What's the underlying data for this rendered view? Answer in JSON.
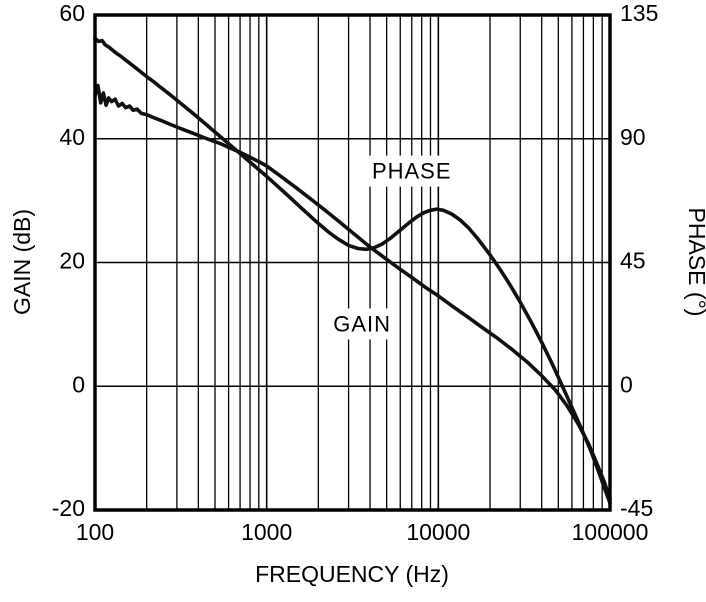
{
  "page": {
    "background": "#ffffff",
    "ink": "#000000"
  },
  "chart_data": {
    "type": "line",
    "x_scale": "log",
    "x_range": [
      100,
      100000
    ],
    "x_ticks": [
      100,
      1000,
      10000,
      100000
    ],
    "x_tick_labels": [
      "100",
      "1000",
      "10000",
      "100000"
    ],
    "xlabel": "FREQUENCY (Hz)",
    "left_axis": {
      "label": "GAIN (dB)",
      "range": [
        -20,
        60
      ],
      "ticks": [
        60,
        40,
        20,
        0,
        -20
      ],
      "tick_labels": [
        "60",
        "40",
        "20",
        "0",
        "-20"
      ]
    },
    "right_axis": {
      "label": "PHASE (°)",
      "range": [
        -45,
        135
      ],
      "ticks": [
        135,
        90,
        45,
        0,
        -45
      ],
      "tick_labels": [
        "135",
        "90",
        "45",
        "0",
        "-45"
      ]
    },
    "grid": {
      "vertical": "log minor + decade lines",
      "horizontal": "major ticks",
      "color": "#000000"
    },
    "line_color": "#111111",
    "line_width": 3.6,
    "series": [
      {
        "name": "GAIN",
        "axis": "left",
        "units": "dB",
        "points": [
          [
            100,
            47.0
          ],
          [
            104,
            48.6
          ],
          [
            108,
            45.8
          ],
          [
            112,
            47.4
          ],
          [
            116,
            45.4
          ],
          [
            120,
            46.6
          ],
          [
            125,
            46.0
          ],
          [
            131,
            46.4
          ],
          [
            137,
            45.3
          ],
          [
            144,
            45.7
          ],
          [
            151,
            45.0
          ],
          [
            159,
            45.3
          ],
          [
            167,
            44.6
          ],
          [
            176,
            44.8
          ],
          [
            186,
            44.1
          ],
          [
            200,
            43.9
          ],
          [
            220,
            43.4
          ],
          [
            240,
            43.0
          ],
          [
            270,
            42.4
          ],
          [
            300,
            41.9
          ],
          [
            340,
            41.3
          ],
          [
            380,
            40.8
          ],
          [
            430,
            40.2
          ],
          [
            480,
            39.7
          ],
          [
            540,
            39.2
          ],
          [
            600,
            38.6
          ],
          [
            700,
            37.8
          ],
          [
            800,
            37.0
          ],
          [
            900,
            36.3
          ],
          [
            1000,
            35.6
          ],
          [
            1200,
            34.0
          ],
          [
            1500,
            32.0
          ],
          [
            1800,
            30.3
          ],
          [
            2200,
            28.4
          ],
          [
            2700,
            26.4
          ],
          [
            3300,
            24.4
          ],
          [
            4000,
            22.5
          ],
          [
            5000,
            20.5
          ],
          [
            6000,
            18.9
          ],
          [
            7000,
            17.6
          ],
          [
            8500,
            15.9
          ],
          [
            10000,
            14.6
          ],
          [
            12000,
            13.0
          ],
          [
            15000,
            11.1
          ],
          [
            18000,
            9.5
          ],
          [
            22000,
            7.8
          ],
          [
            27000,
            5.9
          ],
          [
            33000,
            3.9
          ],
          [
            40000,
            1.7
          ],
          [
            48000,
            -0.6
          ],
          [
            56000,
            -3.1
          ],
          [
            65000,
            -6.0
          ],
          [
            75000,
            -9.3
          ],
          [
            85000,
            -12.9
          ],
          [
            93000,
            -15.6
          ],
          [
            100000,
            -18.2
          ]
        ]
      },
      {
        "name": "PHASE",
        "axis": "right",
        "units": "deg",
        "points": [
          [
            100,
            126.5
          ],
          [
            105,
            125.4
          ],
          [
            110,
            125.7
          ],
          [
            115,
            124.1
          ],
          [
            120,
            123.4
          ],
          [
            126,
            122.3
          ],
          [
            133,
            121.1
          ],
          [
            140,
            120.2
          ],
          [
            148,
            119.0
          ],
          [
            157,
            117.8
          ],
          [
            167,
            116.5
          ],
          [
            178,
            115.1
          ],
          [
            190,
            113.7
          ],
          [
            205,
            112.1
          ],
          [
            220,
            110.7
          ],
          [
            240,
            108.8
          ],
          [
            265,
            106.7
          ],
          [
            290,
            104.8
          ],
          [
            320,
            102.6
          ],
          [
            360,
            100.0
          ],
          [
            400,
            97.6
          ],
          [
            450,
            94.9
          ],
          [
            500,
            92.4
          ],
          [
            560,
            89.8
          ],
          [
            630,
            87.1
          ],
          [
            710,
            84.3
          ],
          [
            800,
            81.5
          ],
          [
            900,
            78.8
          ],
          [
            1000,
            76.3
          ],
          [
            1150,
            72.9
          ],
          [
            1300,
            69.9
          ],
          [
            1500,
            66.3
          ],
          [
            1750,
            62.5
          ],
          [
            2000,
            59.2
          ],
          [
            2300,
            56.0
          ],
          [
            2600,
            53.6
          ],
          [
            3000,
            51.2
          ],
          [
            3400,
            50.1
          ],
          [
            3800,
            49.8
          ],
          [
            4200,
            50.3
          ],
          [
            4700,
            51.7
          ],
          [
            5300,
            54.0
          ],
          [
            6000,
            56.8
          ],
          [
            6700,
            59.3
          ],
          [
            7500,
            61.6
          ],
          [
            8300,
            63.2
          ],
          [
            9000,
            64.0
          ],
          [
            9800,
            64.4
          ],
          [
            10700,
            64.0
          ],
          [
            12000,
            62.6
          ],
          [
            13500,
            60.3
          ],
          [
            15000,
            57.6
          ],
          [
            17000,
            53.6
          ],
          [
            20000,
            47.8
          ],
          [
            23000,
            42.3
          ],
          [
            26000,
            37.1
          ],
          [
            30000,
            30.6
          ],
          [
            35000,
            23.0
          ],
          [
            40000,
            16.0
          ],
          [
            46000,
            8.2
          ],
          [
            52000,
            1.0
          ],
          [
            60000,
            -7.7
          ],
          [
            68000,
            -15.2
          ],
          [
            77000,
            -23.2
          ],
          [
            86000,
            -31.2
          ],
          [
            93000,
            -37.2
          ],
          [
            100000,
            -42.5
          ]
        ]
      }
    ],
    "annotations": [
      {
        "text": "PHASE",
        "x_hz": 7000,
        "y_db": 34.5
      },
      {
        "text": "GAIN",
        "x_hz": 3600,
        "y_db": 9.8
      }
    ]
  }
}
